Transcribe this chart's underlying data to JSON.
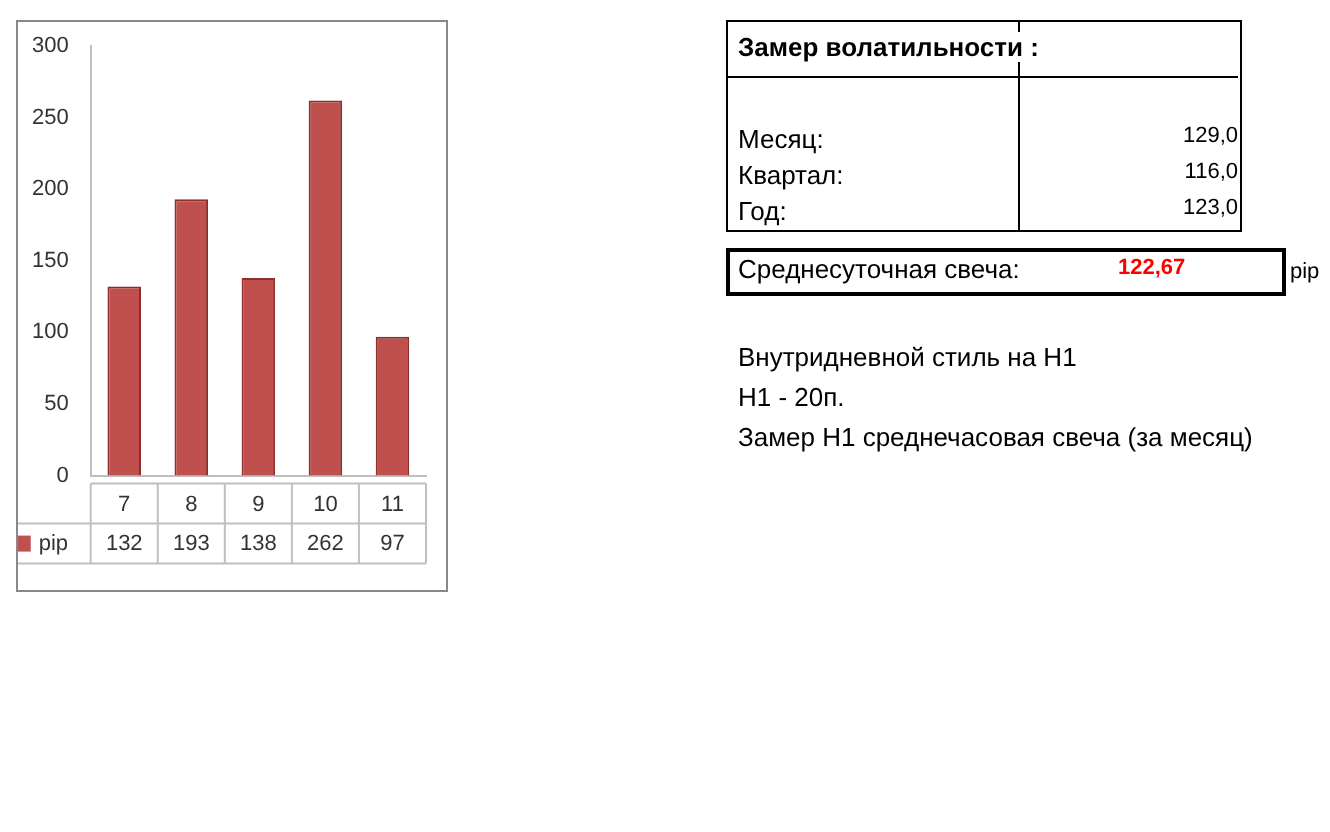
{
  "chart_data": [
    {
      "type": "bar",
      "categories": [
        "7",
        "8",
        "9",
        "10",
        "11"
      ],
      "series": [
        {
          "name": "pip",
          "color": "#c0504d",
          "values": [
            132,
            193,
            138,
            262,
            97
          ]
        }
      ],
      "ylim": [
        0,
        300
      ],
      "yticks": [
        0,
        50,
        100,
        150,
        200,
        250,
        300
      ],
      "grid": false,
      "data_labels": true,
      "legend": "bottom left"
    },
    {
      "type": "other",
      "title": "Замер  волатильности  :",
      "annotations": [
        "Месяц:",
        "129,0",
        "Квартал:",
        "116,0",
        "Год:",
        "123,0",
        "Среднесуточная свеча:",
        "122,67",
        "pip",
        "Внутридневной стиль на H1",
        "H1 - 20п.",
        "Замер H1 среднечасовая свеча (за месяц)"
      ]
    }
  ]
}
